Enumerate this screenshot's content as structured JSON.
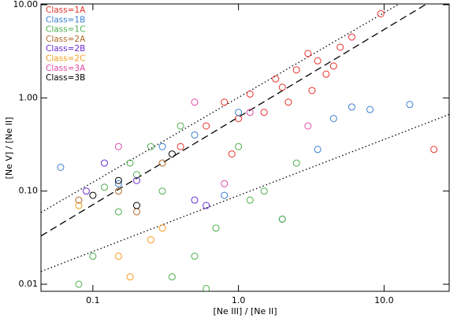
{
  "chart_data": {
    "type": "scatter",
    "xlabel": "[Ne III] / [Ne II]",
    "ylabel": "[Ne V] / [Ne II]",
    "xscale": "log",
    "yscale": "log",
    "xlim": [
      0.044,
      28
    ],
    "ylim": [
      0.0084,
      10.2
    ],
    "xticks": [
      0.1,
      {
        "value": 1,
        "label": "1.0"
      },
      {
        "value": 10,
        "label": "10.0"
      }
    ],
    "yticks": [
      {
        "value": 0.01,
        "label": "0.01"
      },
      {
        "value": 0.1,
        "label": "0.10"
      },
      {
        "value": 1,
        "label": "1.00"
      },
      {
        "value": 10,
        "label": "10.00"
      }
    ],
    "lines": [
      {
        "style": "dashed",
        "x": [
          0.044,
          19.6
        ],
        "y": [
          0.033,
          10.2
        ]
      },
      {
        "style": "dotted",
        "x": [
          0.044,
          12.7
        ],
        "y": [
          0.059,
          10.2
        ]
      },
      {
        "style": "dotted",
        "x": [
          0.044,
          28
        ],
        "y": [
          0.0137,
          0.665
        ]
      }
    ],
    "series": [
      {
        "name": "Class=1A",
        "color": "#e8302a",
        "x": [
          0.8,
          1.2,
          1.5,
          2.0,
          2.5,
          3.0,
          3.5,
          4.0,
          5.0,
          6.0,
          1.0,
          0.6,
          1.8,
          2.2,
          3.2,
          4.5,
          0.4,
          0.9,
          9.5,
          22
        ],
        "values": [
          0.9,
          1.1,
          0.7,
          1.3,
          2.0,
          3.0,
          2.5,
          1.8,
          3.5,
          4.5,
          0.6,
          0.5,
          1.6,
          0.9,
          1.2,
          2.2,
          0.3,
          0.25,
          8.0,
          0.28
        ]
      },
      {
        "name": "Class=1B",
        "color": "#3a7fd0",
        "x": [
          0.06,
          0.15,
          0.3,
          0.5,
          1.0,
          2.0,
          4.5,
          6.0,
          8.0,
          15,
          0.8,
          3.5
        ],
        "values": [
          0.18,
          0.12,
          0.3,
          0.4,
          0.7,
          0.05,
          0.6,
          0.8,
          0.75,
          0.85,
          0.09,
          0.28
        ]
      },
      {
        "name": "Class=1C",
        "color": "#4caf4c",
        "x": [
          0.1,
          0.15,
          0.2,
          0.25,
          0.3,
          0.4,
          0.5,
          0.7,
          1.0,
          1.5,
          2.5,
          0.35,
          0.18,
          0.12,
          0.6,
          1.2,
          2.0,
          0.08
        ],
        "values": [
          0.02,
          0.06,
          0.15,
          0.3,
          0.1,
          0.5,
          0.02,
          0.04,
          0.3,
          0.1,
          0.2,
          0.012,
          0.2,
          0.11,
          0.009,
          0.08,
          0.05,
          0.01
        ]
      },
      {
        "name": "Class=2A",
        "color": "#b0692b",
        "x": [
          0.08,
          0.15,
          0.2,
          0.3
        ],
        "values": [
          0.08,
          0.1,
          0.06,
          0.2
        ]
      },
      {
        "name": "Class=2B",
        "color": "#6a2bd0",
        "x": [
          0.09,
          0.12,
          0.2,
          0.5,
          0.6
        ],
        "values": [
          0.1,
          0.2,
          0.13,
          0.08,
          0.07
        ]
      },
      {
        "name": "Class=2C",
        "color": "#f39c1e",
        "x": [
          0.08,
          0.15,
          0.18,
          0.25,
          0.3
        ],
        "values": [
          0.07,
          0.02,
          0.012,
          0.03,
          0.04
        ]
      },
      {
        "name": "Class=3A",
        "color": "#e04aa5",
        "x": [
          0.15,
          0.5,
          0.8,
          1.2,
          3.0
        ],
        "values": [
          0.3,
          0.9,
          0.12,
          0.7,
          0.5
        ]
      },
      {
        "name": "Class=3B",
        "color": "#000000",
        "x": [
          0.1,
          0.15,
          0.2,
          0.35
        ],
        "values": [
          0.09,
          0.13,
          0.07,
          0.25
        ]
      }
    ]
  }
}
